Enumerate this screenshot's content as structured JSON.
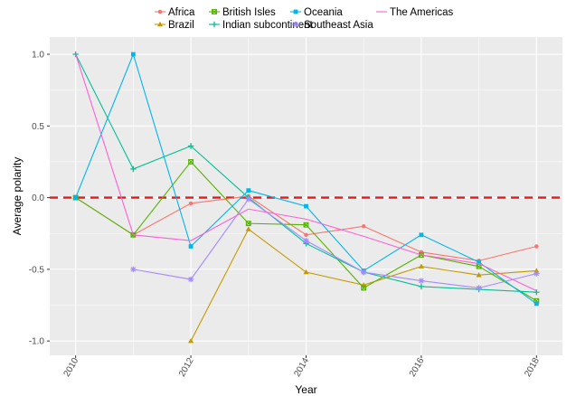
{
  "chart_data": {
    "type": "line",
    "xlabel": "Year",
    "ylabel": "Average polarity",
    "xlim": [
      2009.55,
      2018.45
    ],
    "ylim": [
      -1.1,
      1.12
    ],
    "x_ticks": [
      2010,
      2012,
      2014,
      2016,
      2018
    ],
    "y_ticks": [
      1.0,
      0.5,
      0.0,
      -0.5,
      -1.0
    ],
    "x_tick_labels": [
      "2010",
      "2012",
      "2014",
      "2016",
      "2018"
    ],
    "y_tick_labels": [
      "1.0",
      "0.5",
      "0.0",
      "-0.5",
      "-1.0"
    ],
    "grid": true,
    "legend_position": "top",
    "reference_line": {
      "y": 0.0,
      "color": "#e41a1c",
      "style": "dashed"
    },
    "series": [
      {
        "name": "Africa",
        "color": "#F8766D",
        "marker": "circle",
        "x": [
          2010,
          2011,
          2012,
          2013,
          2014,
          2015,
          2016,
          2017,
          2018
        ],
        "y": [
          0.0,
          -0.26,
          -0.04,
          0.01,
          -0.26,
          -0.2,
          -0.38,
          -0.44,
          -0.34
        ]
      },
      {
        "name": "Brazil",
        "color": "#C49A00",
        "marker": "triangle",
        "x": [
          2012,
          2013,
          2014,
          2015,
          2016,
          2017,
          2018
        ],
        "y": [
          -1.0,
          -0.22,
          -0.52,
          -0.61,
          -0.48,
          -0.54,
          -0.51
        ]
      },
      {
        "name": "British Isles",
        "color": "#53B400",
        "marker": "square-x",
        "x": [
          2010,
          2011,
          2012,
          2013,
          2014,
          2015,
          2016,
          2017,
          2018
        ],
        "y": [
          0.0,
          -0.26,
          0.25,
          -0.18,
          -0.19,
          -0.63,
          -0.4,
          -0.48,
          -0.72
        ]
      },
      {
        "name": "Indian subcontinent",
        "color": "#00C094",
        "marker": "plus",
        "x": [
          2010,
          2011,
          2012,
          2013,
          2014,
          2015,
          2016,
          2017,
          2018
        ],
        "y": [
          1.0,
          0.2,
          0.36,
          0.0,
          -0.32,
          -0.52,
          -0.62,
          -0.64,
          -0.66
        ]
      },
      {
        "name": "Oceania",
        "color": "#00B6EB",
        "marker": "square",
        "x": [
          2010,
          2011,
          2012,
          2013,
          2014,
          2015,
          2016,
          2017,
          2018
        ],
        "y": [
          0.0,
          1.0,
          -0.34,
          0.05,
          -0.06,
          -0.51,
          -0.26,
          -0.45,
          -0.74
        ]
      },
      {
        "name": "Southeast Asia",
        "color": "#A58AFF",
        "marker": "asterisk",
        "x": [
          2011,
          2012,
          2013,
          2014,
          2015,
          2016,
          2017,
          2018
        ],
        "y": [
          -0.5,
          -0.57,
          -0.01,
          -0.3,
          -0.52,
          -0.58,
          -0.63,
          -0.53
        ]
      },
      {
        "name": "The Americas",
        "color": "#FB61D7",
        "marker": "line",
        "x": [
          2010,
          2011,
          2012,
          2013,
          2014,
          2015,
          2016,
          2017,
          2018
        ],
        "y": [
          1.0,
          -0.26,
          -0.3,
          -0.08,
          -0.15,
          -0.27,
          -0.4,
          -0.46,
          -0.65
        ]
      }
    ]
  }
}
